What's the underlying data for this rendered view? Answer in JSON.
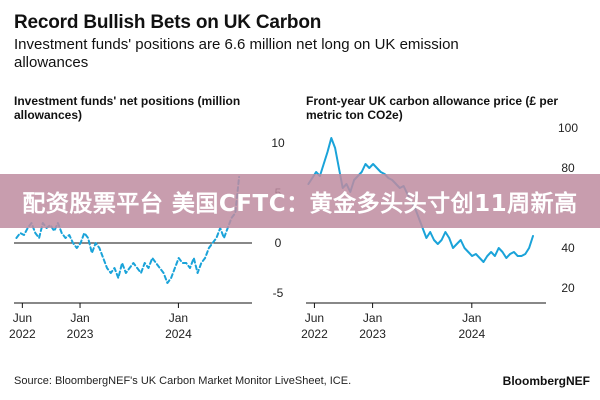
{
  "header": {
    "title": "Record Bullish Bets on UK Carbon",
    "subtitle": "Investment funds' positions are 6.6 million net long on UK emission allowances"
  },
  "banner": {
    "text": "配资股票平台 美国CFTC：黄金多头头寸创11周新高"
  },
  "footer": {
    "source": "Source: BloombergNEF's UK Carbon Market Monitor LiveSheet, ICE.",
    "brand": "BloombergNEF"
  },
  "colors": {
    "line": "#1aa3d9",
    "axis": "#111111",
    "zero_line": "#111111",
    "banner_overlay": "#be8ca0"
  },
  "chart_data": [
    {
      "type": "line",
      "title": "Investment funds' net positions (million allowances)",
      "line_style": "dashed",
      "y_axis_position": "right",
      "ylim": [
        -6,
        12
      ],
      "y_ticks": [
        10,
        5,
        0,
        -5
      ],
      "x_range": [
        "2022-05-01",
        "2024-09-30"
      ],
      "x_ticks": [
        {
          "date": "2022-06-01",
          "line1": "Jun",
          "line2": "2022"
        },
        {
          "date": "2023-01-01",
          "line1": "Jan",
          "line2": "2023"
        },
        {
          "date": "2024-01-01",
          "line1": "Jan",
          "line2": "2024"
        }
      ],
      "series": [
        {
          "x": [
            "2022-05-10",
            "2022-05-24",
            "2022-06-07",
            "2022-06-21",
            "2022-07-05",
            "2022-07-19",
            "2022-08-02",
            "2022-08-16",
            "2022-08-30",
            "2022-09-13",
            "2022-09-27",
            "2022-10-11",
            "2022-10-25",
            "2022-11-08",
            "2022-11-22",
            "2022-12-06",
            "2022-12-20",
            "2023-01-03",
            "2023-01-17",
            "2023-01-31",
            "2023-02-14",
            "2023-02-28",
            "2023-03-14",
            "2023-03-28",
            "2023-04-11",
            "2023-04-25",
            "2023-05-09",
            "2023-05-23",
            "2023-06-06",
            "2023-06-20",
            "2023-07-04",
            "2023-07-18",
            "2023-08-01",
            "2023-08-15",
            "2023-08-29",
            "2023-09-12",
            "2023-09-26",
            "2023-10-10",
            "2023-10-24",
            "2023-11-07",
            "2023-11-21",
            "2023-12-05",
            "2023-12-19",
            "2024-01-02",
            "2024-01-16",
            "2024-01-30",
            "2024-02-13",
            "2024-02-27",
            "2024-03-12",
            "2024-03-26",
            "2024-04-09",
            "2024-04-23",
            "2024-05-07",
            "2024-05-21",
            "2024-06-04",
            "2024-06-18",
            "2024-07-02",
            "2024-07-16",
            "2024-07-30",
            "2024-08-13"
          ],
          "values": [
            0.5,
            1,
            0.8,
            1.5,
            2,
            1,
            0.5,
            2,
            1.5,
            1.8,
            1.2,
            2,
            1,
            0.5,
            0.8,
            0,
            -0.5,
            0,
            1,
            0.5,
            -1,
            0,
            -0.5,
            -1.5,
            -2.5,
            -3,
            -2.5,
            -3.5,
            -2,
            -3,
            -2.5,
            -2,
            -2.5,
            -3,
            -2,
            -2.5,
            -1.5,
            -2,
            -2.5,
            -3,
            -4,
            -3.5,
            -2.5,
            -1.5,
            -2,
            -2,
            -2.5,
            -1.5,
            -3,
            -2,
            -1.5,
            -0.5,
            0,
            0.5,
            1.5,
            0.5,
            1.5,
            2.5,
            3,
            6.6
          ]
        }
      ]
    },
    {
      "type": "line",
      "title": "Front-year UK carbon allowance price (£ per metric ton CO2e)",
      "line_style": "solid",
      "y_axis_position": "right",
      "ylim": [
        14,
        104
      ],
      "y_ticks": [
        100,
        80,
        60,
        40,
        20
      ],
      "x_range": [
        "2022-05-01",
        "2024-09-30"
      ],
      "x_ticks": [
        {
          "date": "2022-06-01",
          "line1": "Jun",
          "line2": "2022"
        },
        {
          "date": "2023-01-01",
          "line1": "Jan",
          "line2": "2023"
        },
        {
          "date": "2024-01-01",
          "line1": "Jan",
          "line2": "2024"
        }
      ],
      "series": [
        {
          "x": [
            "2022-05-10",
            "2022-05-24",
            "2022-06-07",
            "2022-06-21",
            "2022-07-05",
            "2022-07-19",
            "2022-08-02",
            "2022-08-16",
            "2022-08-30",
            "2022-09-13",
            "2022-09-27",
            "2022-10-11",
            "2022-10-25",
            "2022-11-08",
            "2022-11-22",
            "2022-12-06",
            "2022-12-20",
            "2023-01-03",
            "2023-01-17",
            "2023-01-31",
            "2023-02-14",
            "2023-02-28",
            "2023-03-14",
            "2023-03-28",
            "2023-04-11",
            "2023-04-25",
            "2023-05-09",
            "2023-05-23",
            "2023-06-06",
            "2023-06-20",
            "2023-07-04",
            "2023-07-18",
            "2023-08-01",
            "2023-08-15",
            "2023-08-29",
            "2023-09-12",
            "2023-09-26",
            "2023-10-10",
            "2023-10-24",
            "2023-11-07",
            "2023-11-21",
            "2023-12-05",
            "2023-12-19",
            "2024-01-02",
            "2024-01-16",
            "2024-01-30",
            "2024-02-13",
            "2024-02-27",
            "2024-03-12",
            "2024-03-26",
            "2024-04-09",
            "2024-04-23",
            "2024-05-07",
            "2024-05-21",
            "2024-06-04",
            "2024-06-18",
            "2024-07-02",
            "2024-07-16",
            "2024-07-30",
            "2024-08-13"
          ],
          "values": [
            72,
            75,
            78,
            76,
            82,
            88,
            95,
            90,
            80,
            70,
            72,
            68,
            74,
            76,
            78,
            82,
            80,
            82,
            80,
            78,
            77,
            75,
            74,
            72,
            70,
            71,
            67,
            63,
            60,
            55,
            50,
            45,
            48,
            44,
            42,
            44,
            48,
            45,
            40,
            42,
            44,
            40,
            38,
            36,
            37,
            35,
            33,
            36,
            38,
            36,
            40,
            38,
            35,
            37,
            38,
            36,
            36,
            37,
            40,
            46
          ]
        }
      ]
    }
  ]
}
